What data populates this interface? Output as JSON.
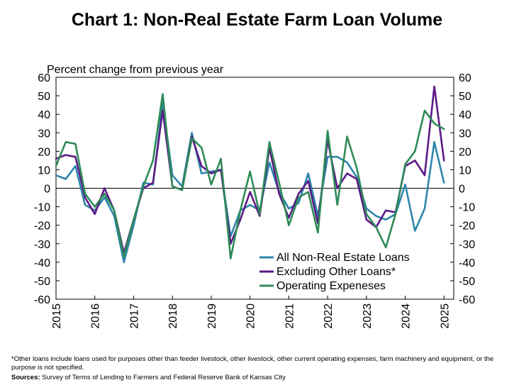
{
  "chart_data": {
    "type": "line",
    "title": "Chart 1: Non-Real Estate Farm Loan Volume",
    "ylabel": "Percent change from previous year",
    "ylim": [
      -60,
      60
    ],
    "yticks": [
      60,
      50,
      40,
      30,
      20,
      10,
      0,
      -10,
      -20,
      -30,
      -40,
      -50,
      -60
    ],
    "ytick_labels": [
      "60",
      "50",
      "40",
      "30",
      "20",
      "10",
      "0",
      "-10",
      "-20",
      "-30",
      "-40",
      "-50",
      "-60"
    ],
    "secondary_y_axis": true,
    "xlim": [
      2015,
      2025.25
    ],
    "xtick_labels": [
      "2015",
      "2016",
      "2017",
      "2018",
      "2019",
      "2020",
      "2021",
      "2022",
      "2023",
      "2024",
      "2025"
    ],
    "x_frequency": "quarterly",
    "legend_position": "bottom-right",
    "grid": false,
    "series": [
      {
        "name": "All Non-Real Estate Loans",
        "color": "#2E86AB",
        "x": [
          2015,
          2015.25,
          2015.5,
          2015.75,
          2016,
          2016.25,
          2016.5,
          2016.75,
          2017,
          2017.25,
          2017.5,
          2017.75,
          2018,
          2018.25,
          2018.5,
          2018.75,
          2019,
          2019.25,
          2019.5,
          2019.75,
          2020,
          2020.25,
          2020.5,
          2020.75,
          2021,
          2021.25,
          2021.5,
          2021.75,
          2022,
          2022.25,
          2022.5,
          2022.75,
          2023,
          2023.25,
          2023.5,
          2023.75,
          2024,
          2024.25,
          2024.5,
          2024.75,
          2025
        ],
        "values": [
          7,
          5,
          12,
          -9,
          -12,
          -5,
          -15,
          -40,
          -20,
          3,
          2,
          46,
          7,
          1,
          30,
          8,
          9,
          10,
          -26,
          -12,
          -9,
          -12,
          14,
          -2,
          -11,
          -8,
          8,
          -15,
          17,
          17,
          14,
          6,
          -11,
          -15,
          -17,
          -14,
          2,
          -23,
          -11,
          25,
          3
        ]
      },
      {
        "name": "Excluding Other Loans*",
        "color": "#5B1A86",
        "x": [
          2015,
          2015.25,
          2015.5,
          2015.75,
          2016,
          2016.25,
          2016.5,
          2016.75,
          2017,
          2017.25,
          2017.5,
          2017.75,
          2018,
          2018.25,
          2018.5,
          2018.75,
          2019,
          2019.25,
          2019.5,
          2019.75,
          2020,
          2020.25,
          2020.5,
          2020.75,
          2021,
          2021.25,
          2021.5,
          2021.75,
          2022,
          2022.25,
          2022.5,
          2022.75,
          2023,
          2023.25,
          2023.5,
          2023.75,
          2024,
          2024.25,
          2024.5,
          2024.75,
          2025
        ],
        "values": [
          16,
          18,
          17,
          -5,
          -14,
          0,
          -12,
          -35,
          -17,
          0,
          3,
          42,
          1,
          -1,
          28,
          12,
          8,
          10,
          -30,
          -17,
          -2,
          -15,
          22,
          -3,
          -16,
          -3,
          4,
          -19,
          26,
          0,
          8,
          5,
          -17,
          -21,
          -12,
          -13,
          12,
          15,
          7,
          55,
          15
        ]
      },
      {
        "name": "Operating Expeneses",
        "color": "#2E8B57",
        "x": [
          2015,
          2015.25,
          2015.5,
          2015.75,
          2016,
          2016.25,
          2016.5,
          2016.75,
          2017,
          2017.25,
          2017.5,
          2017.75,
          2018,
          2018.25,
          2018.5,
          2018.75,
          2019,
          2019.25,
          2019.5,
          2019.75,
          2020,
          2020.25,
          2020.5,
          2020.75,
          2021,
          2021.25,
          2021.5,
          2021.75,
          2022,
          2022.25,
          2022.5,
          2022.75,
          2023,
          2023.25,
          2023.5,
          2023.75,
          2024,
          2024.25,
          2024.5,
          2024.75,
          2025
        ],
        "values": [
          12,
          25,
          24,
          -3,
          -10,
          -3,
          -12,
          -37,
          -17,
          1,
          15,
          51,
          1,
          -1,
          27,
          22,
          2,
          16,
          -38,
          -12,
          9,
          -14,
          25,
          3,
          -20,
          -5,
          -2,
          -24,
          31,
          -9,
          28,
          11,
          -14,
          -21,
          -32,
          -14,
          13,
          20,
          42,
          35,
          32
        ]
      }
    ]
  },
  "footnote": "*Other loans include loans used for purposes other than feeder livestock, other livestock, other current operating expenses, farm machinery and equipment, or the purpose is not specified.",
  "sources": {
    "label": "Sources:",
    "text": " Survey of Terms of Lending to Farmers and Federal Reserve Bank of Kansas City"
  }
}
